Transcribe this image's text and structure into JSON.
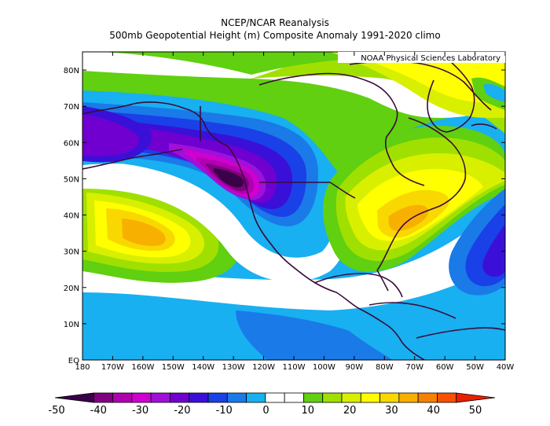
{
  "title": "NCEP/NCAR Reanalysis",
  "subtitle": "500mb Geopotential Height (m) Composite Anomaly 1991-2020 climo",
  "credit": "NOAA Physical Sciences Laboratory",
  "lat_labels": [
    "80N",
    "70N",
    "60N",
    "50N",
    "40N",
    "30N",
    "20N",
    "10N",
    "EQ"
  ],
  "lon_labels": [
    "180",
    "170W",
    "160W",
    "150W",
    "140W",
    "130W",
    "120W",
    "110W",
    "100W",
    "90W",
    "80W",
    "70W",
    "60W",
    "50W",
    "40W"
  ],
  "colorbar": {
    "labels": [
      "-50",
      "-40",
      "-30",
      "-20",
      "-10",
      "0",
      "10",
      "20",
      "30",
      "40",
      "50"
    ],
    "colors": [
      "#3a0048",
      "#800080",
      "#b000b0",
      "#d000d0",
      "#a010d8",
      "#7000d0",
      "#3a10d8",
      "#1a40e8",
      "#1a7ae8",
      "#18b0f0",
      "#ffffff",
      "#ffffff",
      "#60d010",
      "#a0e000",
      "#d8f000",
      "#ffff00",
      "#f8d800",
      "#f8b000",
      "#f88000",
      "#f85000",
      "#e82000"
    ]
  },
  "map": {
    "region": "North Pacific / North America",
    "lat_range": [
      0,
      85
    ],
    "lon_range": [
      "180",
      "40W"
    ],
    "features": {
      "trough": {
        "label": "negative anomaly center",
        "value": -50,
        "lat": 50,
        "lon": "130W"
      },
      "ridge_pacific": {
        "label": "positive anomaly center",
        "value": 35,
        "lat": 35,
        "lon": "155W"
      },
      "ridge_east_us": {
        "label": "positive anomaly center",
        "value": 30,
        "lat": 40,
        "lon": "75W"
      },
      "trough_atlantic": {
        "label": "negative anomaly",
        "value": -20,
        "lat": 25,
        "lon": "45W"
      }
    }
  }
}
